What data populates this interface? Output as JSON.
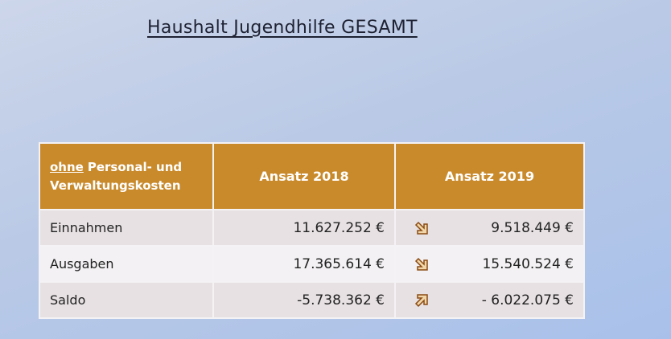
{
  "header": {
    "title": "Haushalt Jugendhilfe GESAMT"
  },
  "table": {
    "columns": [
      {
        "underlined": "ohne",
        "rest": "Personal- und Verwaltungskosten"
      },
      "Ansatz 2018",
      "Ansatz 2019"
    ],
    "rows": [
      [
        "Einnahmen",
        "11.627.252 €",
        "9.518.449 €"
      ],
      [
        "Ausgaben",
        "17.365.614 €",
        "15.540.524 €"
      ],
      [
        "Saldo",
        "-5.738.362 €",
        "- 6.022.075 €"
      ]
    ]
  }
}
